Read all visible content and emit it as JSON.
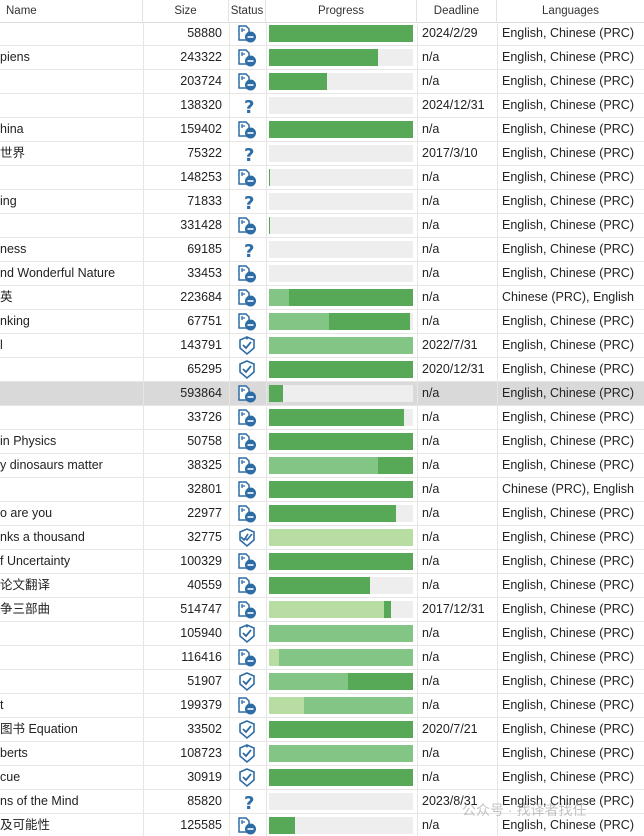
{
  "columns": {
    "name": "Name",
    "size": "Size",
    "status": "Status",
    "progress": "Progress",
    "deadline": "Deadline",
    "languages": "Languages"
  },
  "colors": {
    "dark_green": "#58a957",
    "mid_green": "#82c585",
    "light_green": "#b8dda3",
    "empty": "#eeeeee",
    "icon_blue": "#2e6ca5",
    "selected_row": "#d9d9d9"
  },
  "rows": [
    {
      "name": "",
      "size": "58880",
      "status": "doc-icon",
      "progress": [
        [
          0,
          1.0,
          "dark"
        ]
      ],
      "deadline": "2024/2/29",
      "lang": "English, Chinese (PRC)"
    },
    {
      "name": "piens",
      "size": "243322",
      "status": "doc-icon",
      "progress": [
        [
          0,
          0.76,
          "dark"
        ]
      ],
      "deadline": "n/a",
      "lang": "English, Chinese (PRC)"
    },
    {
      "name": "",
      "size": "203724",
      "status": "doc-icon",
      "progress": [
        [
          0,
          0.4,
          "dark"
        ]
      ],
      "deadline": "n/a",
      "lang": "English, Chinese (PRC)"
    },
    {
      "name": "",
      "size": "138320",
      "status": "question-icon",
      "progress": [],
      "deadline": "2024/12/31",
      "lang": "English, Chinese (PRC)"
    },
    {
      "name": "hina",
      "size": "159402",
      "status": "doc-icon",
      "progress": [
        [
          0,
          1.0,
          "dark"
        ]
      ],
      "deadline": "n/a",
      "lang": "English, Chinese (PRC)"
    },
    {
      "name": "世界",
      "size": "75322",
      "status": "question-icon",
      "progress": [],
      "deadline": "2017/3/10",
      "lang": "English, Chinese (PRC)"
    },
    {
      "name": "",
      "size": "148253",
      "status": "doc-icon",
      "progress": [
        [
          0,
          0.01,
          "dark"
        ]
      ],
      "deadline": "n/a",
      "lang": "English, Chinese (PRC)"
    },
    {
      "name": "ing",
      "size": "71833",
      "status": "question-icon",
      "progress": [],
      "deadline": "n/a",
      "lang": "English, Chinese (PRC)"
    },
    {
      "name": "",
      "size": "331428",
      "status": "doc-icon",
      "progress": [
        [
          0,
          0.01,
          "dark"
        ]
      ],
      "deadline": "n/a",
      "lang": "English, Chinese (PRC)"
    },
    {
      "name": "ness",
      "size": "69185",
      "status": "question-icon",
      "progress": [],
      "deadline": "n/a",
      "lang": "English, Chinese (PRC)"
    },
    {
      "name": "nd Wonderful Nature",
      "size": "33453",
      "status": "doc-icon",
      "progress": [],
      "deadline": "n/a",
      "lang": "English, Chinese (PRC)"
    },
    {
      "name": "英",
      "size": "223684",
      "status": "doc-icon",
      "progress": [
        [
          0,
          0.14,
          "mid"
        ],
        [
          0.14,
          1.0,
          "dark"
        ]
      ],
      "deadline": "n/a",
      "lang": "Chinese (PRC), English"
    },
    {
      "name": "nking",
      "size": "67751",
      "status": "doc-icon",
      "progress": [
        [
          0,
          0.42,
          "mid"
        ],
        [
          0.42,
          0.98,
          "dark"
        ]
      ],
      "deadline": "n/a",
      "lang": "English, Chinese (PRC)"
    },
    {
      "name": "l",
      "size": "143791",
      "status": "check-down-icon",
      "progress": [
        [
          0,
          1.0,
          "mid"
        ]
      ],
      "deadline": "2022/7/31",
      "lang": "English, Chinese (PRC)"
    },
    {
      "name": "",
      "size": "65295",
      "status": "check-icon",
      "progress": [
        [
          0,
          1.0,
          "dark"
        ]
      ],
      "deadline": "2020/12/31",
      "lang": "English, Chinese (PRC)"
    },
    {
      "name": "",
      "size": "593864",
      "status": "doc-icon",
      "progress": [
        [
          0,
          0.1,
          "dark"
        ]
      ],
      "deadline": "n/a",
      "lang": "English, Chinese (PRC)",
      "selected": true
    },
    {
      "name": "",
      "size": "33726",
      "status": "doc-icon",
      "progress": [
        [
          0,
          0.94,
          "dark"
        ]
      ],
      "deadline": "n/a",
      "lang": "English, Chinese (PRC)"
    },
    {
      "name": "in Physics",
      "size": "50758",
      "status": "doc-icon",
      "progress": [
        [
          0,
          1.0,
          "dark"
        ]
      ],
      "deadline": "n/a",
      "lang": "English, Chinese (PRC)"
    },
    {
      "name": "y dinosaurs matter",
      "size": "38325",
      "status": "doc-icon",
      "progress": [
        [
          0,
          0.76,
          "mid"
        ],
        [
          0.76,
          1.0,
          "dark"
        ]
      ],
      "deadline": "n/a",
      "lang": "English, Chinese (PRC)"
    },
    {
      "name": "",
      "size": "32801",
      "status": "doc-icon",
      "progress": [
        [
          0,
          1.0,
          "dark"
        ]
      ],
      "deadline": "n/a",
      "lang": "Chinese (PRC), English"
    },
    {
      "name": "o are you",
      "size": "22977",
      "status": "doc-icon",
      "progress": [
        [
          0,
          0.88,
          "dark"
        ]
      ],
      "deadline": "n/a",
      "lang": "English, Chinese (PRC)"
    },
    {
      "name": "nks a thousand",
      "size": "32775",
      "status": "double-check-icon",
      "progress": [
        [
          0,
          1.0,
          "light"
        ]
      ],
      "deadline": "n/a",
      "lang": "English, Chinese (PRC)"
    },
    {
      "name": "f Uncertainty",
      "size": "100329",
      "status": "doc-icon",
      "progress": [
        [
          0,
          1.0,
          "dark"
        ]
      ],
      "deadline": "n/a",
      "lang": "English, Chinese (PRC)"
    },
    {
      "name": "论文翻译",
      "size": "40559",
      "status": "doc-icon",
      "progress": [
        [
          0,
          0.7,
          "dark"
        ]
      ],
      "deadline": "n/a",
      "lang": "English, Chinese (PRC)"
    },
    {
      "name": "争三部曲",
      "size": "514747",
      "status": "doc-icon",
      "progress": [
        [
          0,
          0.8,
          "light"
        ],
        [
          0.8,
          0.85,
          "dark"
        ]
      ],
      "deadline": "2017/12/31",
      "lang": "English, Chinese (PRC)"
    },
    {
      "name": "",
      "size": "105940",
      "status": "check-down-icon",
      "progress": [
        [
          0,
          1.0,
          "mid"
        ]
      ],
      "deadline": "n/a",
      "lang": "English, Chinese (PRC)"
    },
    {
      "name": "",
      "size": "116416",
      "status": "doc-icon",
      "progress": [
        [
          0,
          0.07,
          "light"
        ],
        [
          0.07,
          1.0,
          "mid"
        ]
      ],
      "deadline": "n/a",
      "lang": "English, Chinese (PRC)"
    },
    {
      "name": "",
      "size": "51907",
      "status": "check-icon",
      "progress": [
        [
          0,
          0.55,
          "mid"
        ],
        [
          0.55,
          1.0,
          "dark"
        ]
      ],
      "deadline": "n/a",
      "lang": "English, Chinese (PRC)"
    },
    {
      "name": "t",
      "size": "199379",
      "status": "doc-icon",
      "progress": [
        [
          0,
          0.24,
          "light"
        ],
        [
          0.24,
          1.0,
          "mid"
        ]
      ],
      "deadline": "n/a",
      "lang": "English, Chinese (PRC)"
    },
    {
      "name": "图书 Equation",
      "size": "33502",
      "status": "check-icon",
      "progress": [
        [
          0,
          1.0,
          "dark"
        ]
      ],
      "deadline": "2020/7/21",
      "lang": "English, Chinese (PRC)"
    },
    {
      "name": "berts",
      "size": "108723",
      "status": "check-down-icon",
      "progress": [
        [
          0,
          1.0,
          "mid"
        ]
      ],
      "deadline": "n/a",
      "lang": "English, Chinese (PRC)"
    },
    {
      "name": "cue",
      "size": "30919",
      "status": "check-icon",
      "progress": [
        [
          0,
          1.0,
          "dark"
        ]
      ],
      "deadline": "n/a",
      "lang": "English, Chinese (PRC)"
    },
    {
      "name": "ns of the Mind",
      "size": "85820",
      "status": "question-icon",
      "progress": [],
      "deadline": "2023/8/31",
      "lang": "English, Chinese (PRC)"
    },
    {
      "name": "及可能性",
      "size": "125585",
      "status": "doc-icon",
      "progress": [
        [
          0,
          0.18,
          "dark"
        ]
      ],
      "deadline": "n/a",
      "lang": "English, Chinese (PRC)"
    }
  ],
  "watermark": "公众号 · 找译者找任"
}
